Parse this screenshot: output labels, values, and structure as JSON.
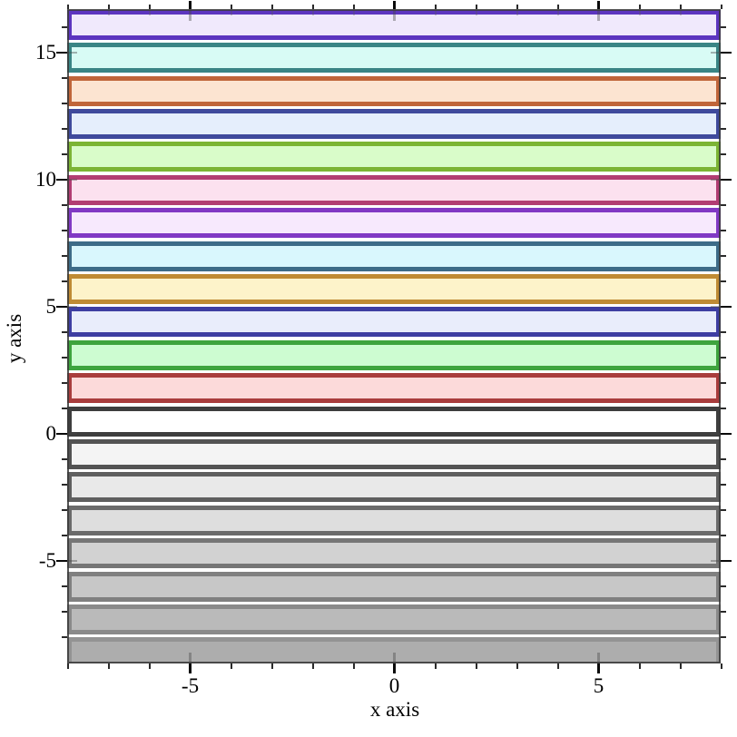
{
  "page": {
    "background": "#ffffff"
  },
  "chart_data": {
    "type": "area",
    "subtype": "horizontal-interval-bands",
    "title": "",
    "xlabel": "x axis",
    "ylabel": "y axis",
    "xlim": [
      -8,
      8
    ],
    "ylim": [
      -9.05,
      16.7
    ],
    "grid": false,
    "legend": "none",
    "x_major_ticks": [
      {
        "value": -5,
        "label": "-5"
      },
      {
        "value": 0,
        "label": "0"
      },
      {
        "value": 5,
        "label": "5"
      }
    ],
    "x_minor_ticks": [
      -8,
      -7,
      -6,
      -4,
      -3,
      -2,
      -1,
      1,
      2,
      3,
      4,
      6,
      7,
      8
    ],
    "y_major_ticks": [
      {
        "value": -5,
        "label": "-5"
      },
      {
        "value": 0,
        "label": "0"
      },
      {
        "value": 5,
        "label": "5"
      },
      {
        "value": 10,
        "label": "10"
      },
      {
        "value": 15,
        "label": "15"
      }
    ],
    "y_minor_ticks": [
      -8,
      -7,
      -6,
      -4,
      -3,
      -2,
      -1,
      1,
      2,
      3,
      4,
      6,
      7,
      8,
      9,
      11,
      12,
      13,
      14,
      16
    ],
    "bands": [
      {
        "index": 12,
        "y_min": 15.6,
        "y_max": 16.6,
        "line_color": "#5c35bf",
        "fill_color": "#f0e9fc"
      },
      {
        "index": 11,
        "y_min": 14.3,
        "y_max": 15.3,
        "line_color": "#3a8585",
        "fill_color": "#d8fbf5"
      },
      {
        "index": 10,
        "y_min": 13.0,
        "y_max": 14.0,
        "line_color": "#c0653a",
        "fill_color": "#fce4d1"
      },
      {
        "index": 9,
        "y_min": 11.7,
        "y_max": 12.7,
        "line_color": "#3f4a9c",
        "fill_color": "#e5eefc"
      },
      {
        "index": 8,
        "y_min": 10.4,
        "y_max": 11.4,
        "line_color": "#7cb434",
        "fill_color": "#d9fcc9"
      },
      {
        "index": 7,
        "y_min": 9.1,
        "y_max": 10.1,
        "line_color": "#b23d73",
        "fill_color": "#fce1ef"
      },
      {
        "index": 6,
        "y_min": 7.8,
        "y_max": 8.8,
        "line_color": "#8139c4",
        "fill_color": "#f7e9fd"
      },
      {
        "index": 5,
        "y_min": 6.5,
        "y_max": 7.5,
        "line_color": "#3d6c88",
        "fill_color": "#d9f7fd"
      },
      {
        "index": 4,
        "y_min": 5.2,
        "y_max": 6.2,
        "line_color": "#bf8b34",
        "fill_color": "#fdf3ca"
      },
      {
        "index": 3,
        "y_min": 3.9,
        "y_max": 4.9,
        "line_color": "#3e3ea2",
        "fill_color": "#e9edfb"
      },
      {
        "index": 2,
        "y_min": 2.6,
        "y_max": 3.6,
        "line_color": "#3ea43e",
        "fill_color": "#cdfcd1"
      },
      {
        "index": 1,
        "y_min": 1.3,
        "y_max": 2.3,
        "line_color": "#a93d3d",
        "fill_color": "#fcdada"
      },
      {
        "index": 0,
        "y_min": 0.0,
        "y_max": 1.0,
        "line_color": "#3e3e3e",
        "fill_color": "#ffffff"
      },
      {
        "index": -1,
        "y_min": -1.3,
        "y_max": -0.3,
        "line_color": "#535353",
        "fill_color": "#f4f4f4"
      },
      {
        "index": -2,
        "y_min": -2.6,
        "y_max": -1.6,
        "line_color": "#5f5f5f",
        "fill_color": "#e9e9e9"
      },
      {
        "index": -3,
        "y_min": -3.9,
        "y_max": -2.9,
        "line_color": "#6b6b6b",
        "fill_color": "#dedede"
      },
      {
        "index": -4,
        "y_min": -5.2,
        "y_max": -4.2,
        "line_color": "#767676",
        "fill_color": "#d2d2d2"
      },
      {
        "index": -5,
        "y_min": -6.5,
        "y_max": -5.5,
        "line_color": "#808080",
        "fill_color": "#c7c7c7"
      },
      {
        "index": -6,
        "y_min": -7.8,
        "y_max": -6.8,
        "line_color": "#8a8a8a",
        "fill_color": "#bababa"
      },
      {
        "index": -7,
        "y_min": -9.1,
        "y_max": -8.1,
        "line_color": "#939393",
        "fill_color": "#adadad"
      }
    ],
    "style": {
      "frame_color": "#3a3a3a",
      "tick_color": "#0a0a0a",
      "text_color": "#000000"
    }
  }
}
